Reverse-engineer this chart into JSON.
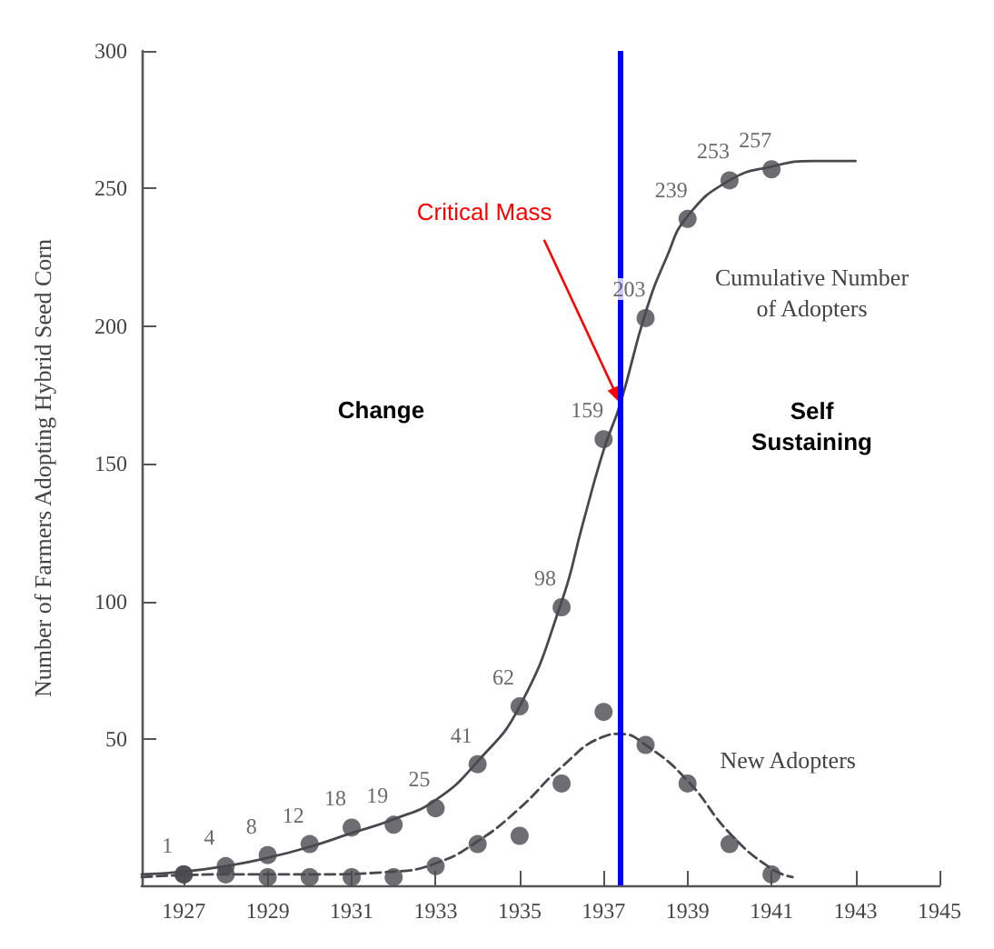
{
  "chart_data": {
    "type": "scatter",
    "ylabel": "Number of Farmers Adopting Hybrid Seed Corn",
    "xlim": [
      1926,
      1945
    ],
    "xticks": [
      1927,
      1929,
      1931,
      1933,
      1935,
      1937,
      1939,
      1941,
      1943,
      1945
    ],
    "ylim": [
      -3,
      300
    ],
    "yticks": [
      50,
      100,
      150,
      200,
      250,
      300
    ],
    "grid": false,
    "series": [
      {
        "color": "#48484f",
        "marker": "circle",
        "x": [
          1927,
          1928,
          1929,
          1930,
          1931,
          1932,
          1933,
          1934,
          1935,
          1936,
          1937,
          1938,
          1939,
          1940,
          1941
        ],
        "values": [
          1,
          4,
          8,
          12,
          18,
          19,
          25,
          41,
          62,
          98,
          159,
          203,
          239,
          253,
          257
        ],
        "value_labels": [
          "1",
          "4",
          "8",
          "12",
          "18",
          "19",
          "25",
          "41",
          "62",
          "98",
          "159",
          "203",
          "239",
          "253",
          "257"
        ]
      },
      {
        "type": "line",
        "color": "#48484f",
        "marker": "none",
        "line_style": "solid",
        "x": [
          1926,
          1927,
          1928,
          1929,
          1930,
          1931,
          1932,
          1933,
          1934,
          1935,
          1936,
          1936.5,
          1937,
          1937.4,
          1938,
          1938.5,
          1939,
          1940,
          1941,
          1942,
          1943
        ],
        "values": [
          1,
          2,
          4,
          7,
          11,
          16,
          21,
          28,
          42,
          62,
          100,
          128,
          155,
          172,
          205,
          225,
          240,
          253,
          258,
          260,
          260
        ]
      },
      {
        "color": "#48484f",
        "marker": "circle",
        "x": [
          1927,
          1928,
          1929,
          1930,
          1931,
          1932,
          1933,
          1934,
          1935,
          1936,
          1937,
          1938,
          1939,
          1940,
          1941
        ],
        "values": [
          1,
          1,
          0,
          0,
          0,
          0,
          4,
          12,
          15,
          34,
          60,
          48,
          34,
          12,
          1
        ]
      },
      {
        "type": "line",
        "color": "#48484f",
        "marker": "none",
        "line_style": "dashed",
        "x": [
          1926,
          1928,
          1930,
          1932,
          1933,
          1934,
          1935,
          1936,
          1937,
          1937.4,
          1938,
          1939,
          1940,
          1941,
          1941.5
        ],
        "values": [
          0,
          1,
          1,
          2,
          5,
          13,
          25,
          40,
          51,
          52,
          48,
          35,
          16,
          3,
          0
        ]
      }
    ],
    "ref_lines": [
      {
        "axis": "x",
        "value": 1937.4,
        "color": "#0000ff"
      }
    ],
    "annotations": [
      {
        "text": "Critical Mass",
        "x": 1937.4,
        "y": 172
      },
      "Cumulative Number\nof Adopters",
      "New Adopters",
      "Change",
      "Self\nSustaining"
    ]
  }
}
